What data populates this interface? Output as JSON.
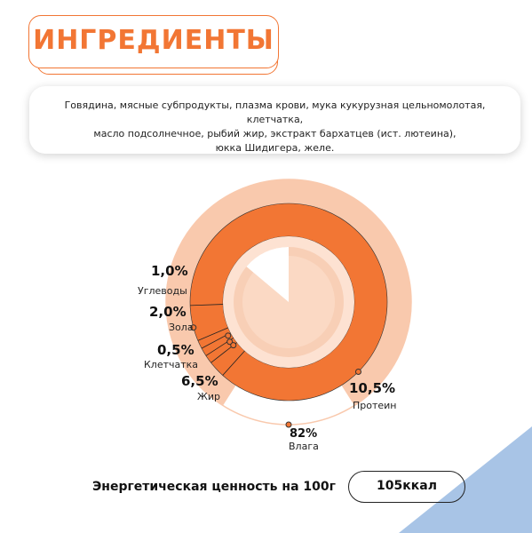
{
  "title": "ИНГРЕДИЕНТЫ",
  "ingredients": {
    "line1": "Говядина, мясные субпродукты, плазма крови, мука кукурузная цельномолотая, клетчатка,",
    "line2": "масло подсолнечное, рыбий жир, экстракт бархатцев (ист. лютеина),",
    "line3": "юкка Шидигера, желе."
  },
  "colors": {
    "accent": "#f27634",
    "light": "#f9c9ad",
    "pale": "#fde2d2",
    "corner": "#a8c4e6"
  },
  "chart_data": {
    "type": "pie",
    "outer": {
      "name": "Влага",
      "value": "82%",
      "percent": 82
    },
    "inner": [
      {
        "value": "1,0%",
        "name": "Углеводы",
        "percent": 1.0
      },
      {
        "value": "2,0%",
        "name": "Зола",
        "percent": 2.0
      },
      {
        "value": "0,5%",
        "name": "Клетчатка",
        "percent": 0.5
      },
      {
        "value": "6,5%",
        "name": "Жир",
        "percent": 6.5
      },
      {
        "value": "10,5%",
        "name": "Протеин",
        "percent": 10.5
      }
    ]
  },
  "energy": {
    "label": "Энергетическая ценность на 100г",
    "value": "105ккал"
  }
}
